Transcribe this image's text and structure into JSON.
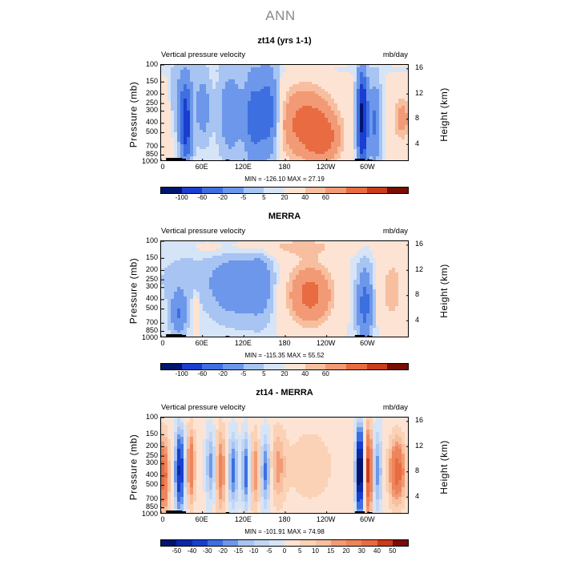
{
  "title": "ANN",
  "colors": {
    "palette12": [
      "#00156e",
      "#1a3ed0",
      "#3d6fe0",
      "#6c97ea",
      "#a7c4f2",
      "#d6e4f7",
      "#fde3d3",
      "#f7bf9f",
      "#f29a75",
      "#e96b41",
      "#c93c1c",
      "#7a0d04"
    ],
    "palette16": [
      "#00156e",
      "#0a2aa8",
      "#1a3ed0",
      "#3d6fe0",
      "#6c97ea",
      "#a7c4f2",
      "#c2d6f4",
      "#d6e4f7",
      "#fde3d3",
      "#fbd2b6",
      "#f7bf9f",
      "#f29a75",
      "#ee8459",
      "#e96b41",
      "#c93c1c",
      "#7a0d04"
    ]
  },
  "panels": [
    {
      "title": "zt14 (yrs 1-1)",
      "left_label": "Vertical pressure velocity",
      "right_label": "mb/day",
      "min_max": "MIN = -126.10   MAX =   27.19",
      "colorbar_labels": [
        "-100",
        "-60",
        "-20",
        "-5",
        "5",
        "20",
        "40",
        "60"
      ]
    },
    {
      "title": "MERRA",
      "left_label": "Vertical pressure velocity",
      "right_label": "mb/day",
      "min_max": "MIN = -115.35   MAX =   55.52",
      "colorbar_labels": [
        "-100",
        "-60",
        "-20",
        "-5",
        "5",
        "20",
        "40",
        "60"
      ]
    },
    {
      "title": "zt14 - MERRA",
      "left_label": "Vertical pressure velocity",
      "right_label": "mb/day",
      "min_max": "MIN = -101.91   MAX =   74.98",
      "colorbar_labels": [
        "-50",
        "-40",
        "-30",
        "-20",
        "-15",
        "-10",
        "-5",
        "0",
        "5",
        "10",
        "15",
        "20",
        "30",
        "40",
        "50"
      ]
    }
  ],
  "axes": {
    "ylabel": "Pressure (mb)",
    "y2label": "Height (km)",
    "pressure_ticks": [
      "100",
      "150",
      "200",
      "250",
      "300",
      "400",
      "500",
      "700",
      "850",
      "1000"
    ],
    "height_ticks": [
      "16",
      "12",
      "8",
      "4"
    ],
    "x_ticks": [
      "0",
      "60E",
      "120E",
      "180",
      "120W",
      "60W"
    ]
  },
  "chart_data": [
    {
      "type": "heatmap",
      "title": "zt14 (yrs 1-1)",
      "subtitle_left": "Vertical pressure velocity",
      "subtitle_right": "mb/day",
      "xlabel": "",
      "ylabel": "Pressure (mb)",
      "y2label": "Height (km)",
      "x_ticks": [
        "0",
        "60E",
        "120E",
        "180",
        "120W",
        "60W"
      ],
      "y_ticks": [
        100,
        150,
        200,
        250,
        300,
        400,
        500,
        700,
        850,
        1000
      ],
      "y2_ticks": [
        16,
        12,
        8,
        4
      ],
      "ylim": [
        1000,
        100
      ],
      "colorbar_levels": [
        -100,
        -60,
        -20,
        -5,
        5,
        20,
        40,
        60
      ],
      "min": -126.1,
      "max": 27.19
    },
    {
      "type": "heatmap",
      "title": "MERRA",
      "subtitle_left": "Vertical pressure velocity",
      "subtitle_right": "mb/day",
      "xlabel": "",
      "ylabel": "Pressure (mb)",
      "y2label": "Height (km)",
      "x_ticks": [
        "0",
        "60E",
        "120E",
        "180",
        "120W",
        "60W"
      ],
      "y_ticks": [
        100,
        150,
        200,
        250,
        300,
        400,
        500,
        700,
        850,
        1000
      ],
      "y2_ticks": [
        16,
        12,
        8,
        4
      ],
      "ylim": [
        1000,
        100
      ],
      "colorbar_levels": [
        -100,
        -60,
        -20,
        -5,
        5,
        20,
        40,
        60
      ],
      "min": -115.35,
      "max": 55.52
    },
    {
      "type": "heatmap",
      "title": "zt14 - MERRA",
      "subtitle_left": "Vertical pressure velocity",
      "subtitle_right": "mb/day",
      "xlabel": "",
      "ylabel": "Pressure (mb)",
      "y2label": "Height (km)",
      "x_ticks": [
        "0",
        "60E",
        "120E",
        "180",
        "120W",
        "60W"
      ],
      "y_ticks": [
        100,
        150,
        200,
        250,
        300,
        400,
        500,
        700,
        850,
        1000
      ],
      "y2_ticks": [
        16,
        12,
        8,
        4
      ],
      "ylim": [
        1000,
        100
      ],
      "colorbar_levels": [
        -50,
        -40,
        -30,
        -20,
        -15,
        -10,
        -5,
        0,
        5,
        10,
        15,
        20,
        30,
        40,
        50
      ],
      "min": -101.91,
      "max": 74.98
    }
  ]
}
